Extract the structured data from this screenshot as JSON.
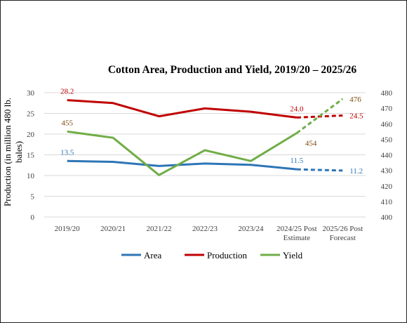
{
  "chart_data": {
    "type": "line",
    "title": "Cotton Area, Production and Yield, 2019/20 – 2025/26",
    "ylabel": "Production (in million 480 lb. bales)",
    "ylabel_lines": [
      "Production (in million 480 lb.",
      "bales)"
    ],
    "ylim": [
      0,
      30
    ],
    "y_ticks": [
      "0",
      "5",
      "10",
      "15",
      "20",
      "25",
      "30"
    ],
    "y2lim": [
      400,
      480
    ],
    "y2_ticks": [
      "400",
      "410",
      "420",
      "430",
      "440",
      "450",
      "460",
      "470",
      "480"
    ],
    "grid": true,
    "legend": "bottom",
    "categories": [
      [
        "2019/20"
      ],
      [
        "2020/21"
      ],
      [
        "2021/22"
      ],
      [
        "2022/23"
      ],
      [
        "2023/24"
      ],
      [
        "2024/25 Post",
        "Estimate"
      ],
      [
        "2025/26 Post",
        "Forecast"
      ]
    ],
    "series": [
      {
        "name": "Area",
        "axis": "left",
        "color": "#2E75B6",
        "values": [
          13.5,
          13.3,
          12.3,
          12.9,
          12.6,
          11.5,
          11.2
        ],
        "labels": [
          {
            "index": 0,
            "text": "13.5",
            "pos": "above"
          },
          {
            "index": 5,
            "text": "11.5",
            "pos": "above"
          },
          {
            "index": 6,
            "text": "11.2",
            "pos": "right"
          }
        ]
      },
      {
        "name": "Production",
        "axis": "left",
        "color": "#C00000",
        "values": [
          28.2,
          27.5,
          24.3,
          26.2,
          25.4,
          24.0,
          24.5
        ],
        "labels": [
          {
            "index": 0,
            "text": "28.2",
            "pos": "above"
          },
          {
            "index": 5,
            "text": "24.0",
            "pos": "above"
          },
          {
            "index": 6,
            "text": "24.5",
            "pos": "right"
          }
        ]
      },
      {
        "name": "Yield",
        "axis": "right",
        "color": "#70AD47",
        "values": [
          455,
          451,
          427,
          443,
          436,
          454,
          476
        ],
        "labels": [
          {
            "index": 0,
            "text": "455",
            "pos": "above"
          },
          {
            "index": 5,
            "text": "454",
            "pos": "right-below"
          },
          {
            "index": 6,
            "text": "476",
            "pos": "right"
          }
        ]
      }
    ],
    "label_colors": {
      "Area": "#2E75B6",
      "Production": "#C00000",
      "Yield": "#7F4A10"
    }
  }
}
